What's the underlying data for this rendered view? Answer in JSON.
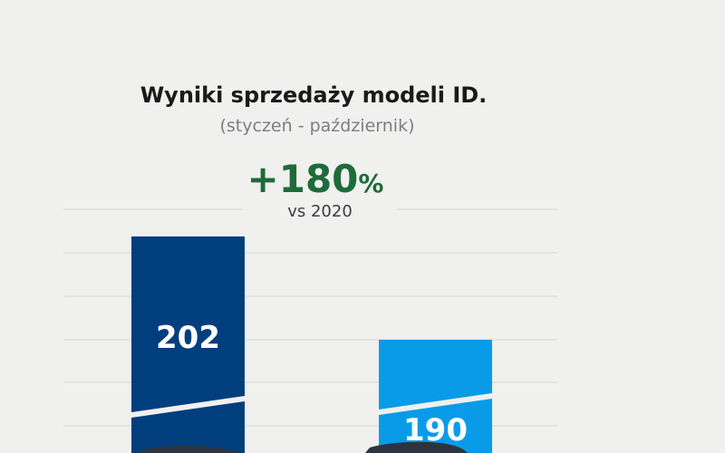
{
  "chart_data": {
    "type": "bar",
    "title": "Wyniki sprzedaży modeli ID.",
    "subtitle": "(styczeń - październik)",
    "highlight": {
      "value": "+180",
      "unit": "%",
      "caption": "vs 2020"
    },
    "categories": [
      "",
      ""
    ],
    "values": [
      202,
      190
    ],
    "value_labels": [
      "202",
      "190"
    ],
    "colors": {
      "bar_1": "#003e7e",
      "bar_2": "#0a9be8",
      "highlight": "#1e6b3a"
    },
    "grid": true,
    "legend": "none"
  }
}
